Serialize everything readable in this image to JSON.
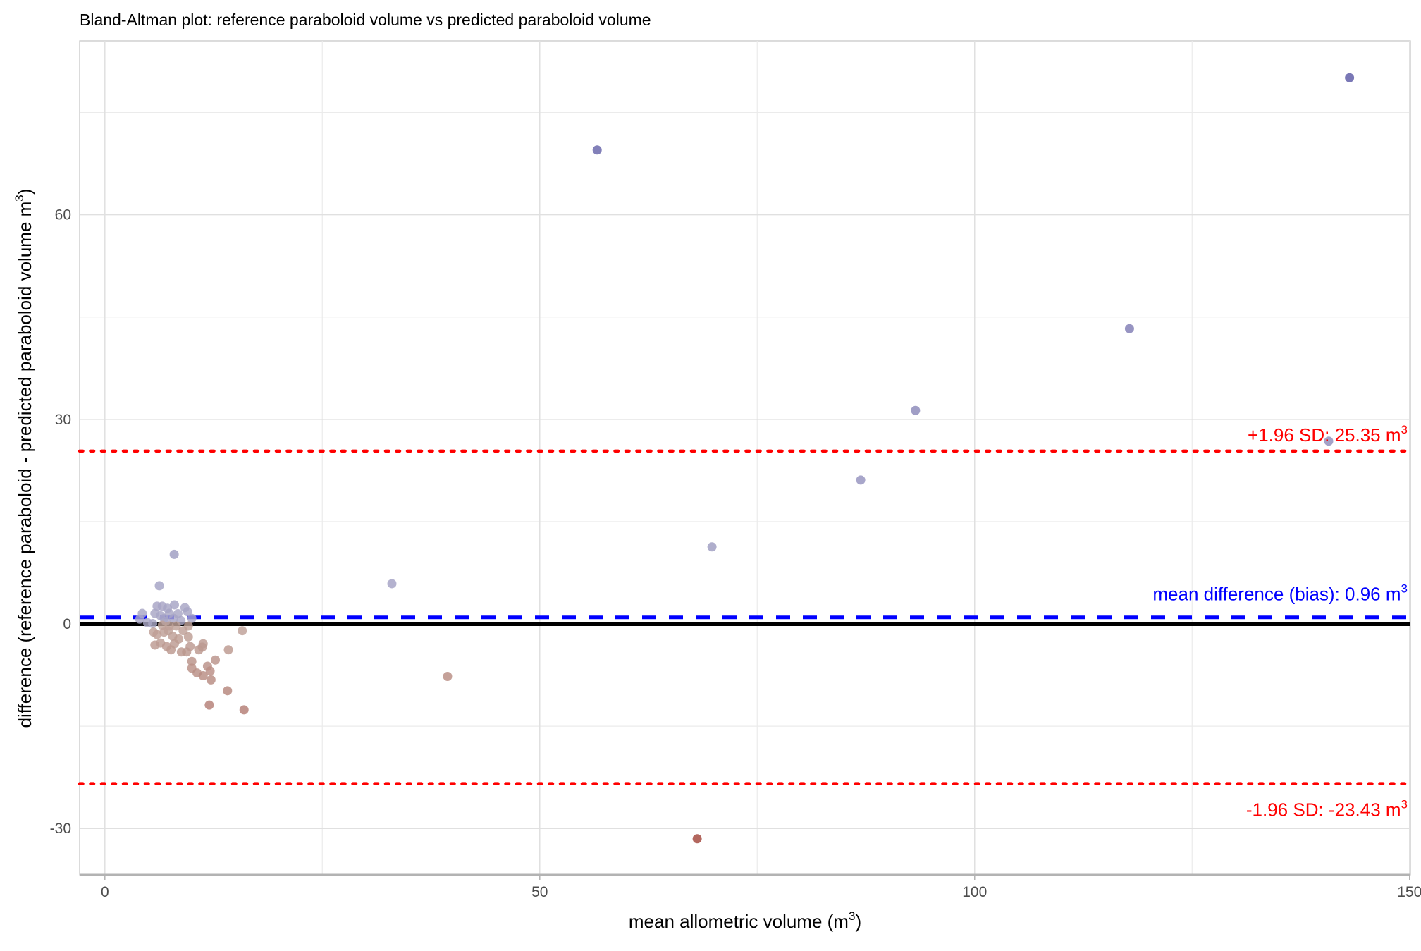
{
  "chart_data": {
    "type": "scatter",
    "title": "Bland-Altman plot: reference paraboloid volume vs predicted paraboloid volume",
    "xlabel": "mean allometric volume (m",
    "xlabel_sup": "3",
    "xlabel_end": ")",
    "ylabel": "difference (reference paraboloid - predicted paraboloid volume  m",
    "ylabel_sup": "3",
    "ylabel_end": ")",
    "xlim": [
      -2.9,
      150.1
    ],
    "ylim": [
      -36.8,
      85.5
    ],
    "xticks": [
      0,
      50,
      100,
      150
    ],
    "xtick_labels": [
      "0",
      "50",
      "100",
      "150"
    ],
    "xminor": [
      25,
      75,
      125
    ],
    "yticks": [
      -30,
      0,
      30,
      60
    ],
    "ytick_labels": [
      "-30",
      "0",
      "30",
      "60"
    ],
    "yminor": [
      -15,
      15,
      45,
      75
    ],
    "grid": true,
    "colors": {
      "positive_low": "#a9a7c6",
      "positive_high": "#5d5aa6",
      "negative_low": "#bfa39a",
      "negative_high": "#a2453b",
      "zero_line": "#000000",
      "bias_line": "#0000ff",
      "limit_line": "#ff0000"
    },
    "reference_lines": {
      "zero": 0,
      "bias": {
        "value": 0.96,
        "label": "mean difference (bias): 0.96 m",
        "sup": "3"
      },
      "upper": {
        "value": 25.35,
        "label": "+1.96 SD: 25.35 m",
        "sup": "3"
      },
      "lower": {
        "value": -23.43,
        "label": "-1.96 SD: -23.43 m",
        "sup": "3"
      }
    },
    "points": [
      [
        56.6,
        69.5
      ],
      [
        143.1,
        80.1
      ],
      [
        117.8,
        43.3
      ],
      [
        93.2,
        31.3
      ],
      [
        86.9,
        21.1
      ],
      [
        140.7,
        26.8
      ],
      [
        69.8,
        11.3
      ],
      [
        33.0,
        5.9
      ],
      [
        39.4,
        -7.7
      ],
      [
        68.1,
        -31.5
      ],
      [
        7.97,
        10.2
      ],
      [
        6.26,
        5.6
      ],
      [
        4.3,
        1.55
      ],
      [
        4.0,
        0.7
      ],
      [
        4.9,
        0.2
      ],
      [
        6.0,
        2.6
      ],
      [
        6.6,
        2.6
      ],
      [
        8.0,
        2.8
      ],
      [
        9.2,
        2.4
      ],
      [
        9.5,
        1.8
      ],
      [
        10.0,
        0.8
      ],
      [
        7.4,
        1.55
      ],
      [
        5.75,
        1.55
      ],
      [
        6.8,
        0.8
      ],
      [
        7.9,
        0.8
      ],
      [
        8.75,
        0.5
      ],
      [
        5.5,
        0.05
      ],
      [
        7.2,
        2.3
      ],
      [
        8.4,
        1.5
      ],
      [
        6.4,
        1.2
      ],
      [
        7.0,
        0.4
      ],
      [
        6.6,
        -0.2
      ],
      [
        7.4,
        -0.3
      ],
      [
        8.2,
        -0.3
      ],
      [
        9.6,
        -0.3
      ],
      [
        5.6,
        -1.2
      ],
      [
        6.0,
        -1.55
      ],
      [
        6.8,
        -1.2
      ],
      [
        7.8,
        -1.8
      ],
      [
        9.0,
        -1.0
      ],
      [
        9.6,
        -1.9
      ],
      [
        5.75,
        -3.1
      ],
      [
        6.4,
        -2.8
      ],
      [
        7.1,
        -3.3
      ],
      [
        7.6,
        -3.8
      ],
      [
        8.0,
        -2.9
      ],
      [
        8.8,
        -4.1
      ],
      [
        9.4,
        -4.1
      ],
      [
        9.8,
        -3.3
      ],
      [
        10.8,
        -3.8
      ],
      [
        11.2,
        -3.4
      ],
      [
        11.3,
        -2.9
      ],
      [
        10.0,
        -5.5
      ],
      [
        10.0,
        -6.5
      ],
      [
        10.6,
        -7.2
      ],
      [
        11.3,
        -7.6
      ],
      [
        11.8,
        -6.2
      ],
      [
        12.1,
        -6.9
      ],
      [
        12.2,
        -8.2
      ],
      [
        12.7,
        -5.3
      ],
      [
        14.2,
        -3.8
      ],
      [
        14.1,
        -9.8
      ],
      [
        12.0,
        -11.9
      ],
      [
        16.0,
        -12.6
      ],
      [
        15.8,
        -1.0
      ],
      [
        8.5,
        -2.2
      ],
      [
        7.3,
        -1.0
      ]
    ]
  }
}
